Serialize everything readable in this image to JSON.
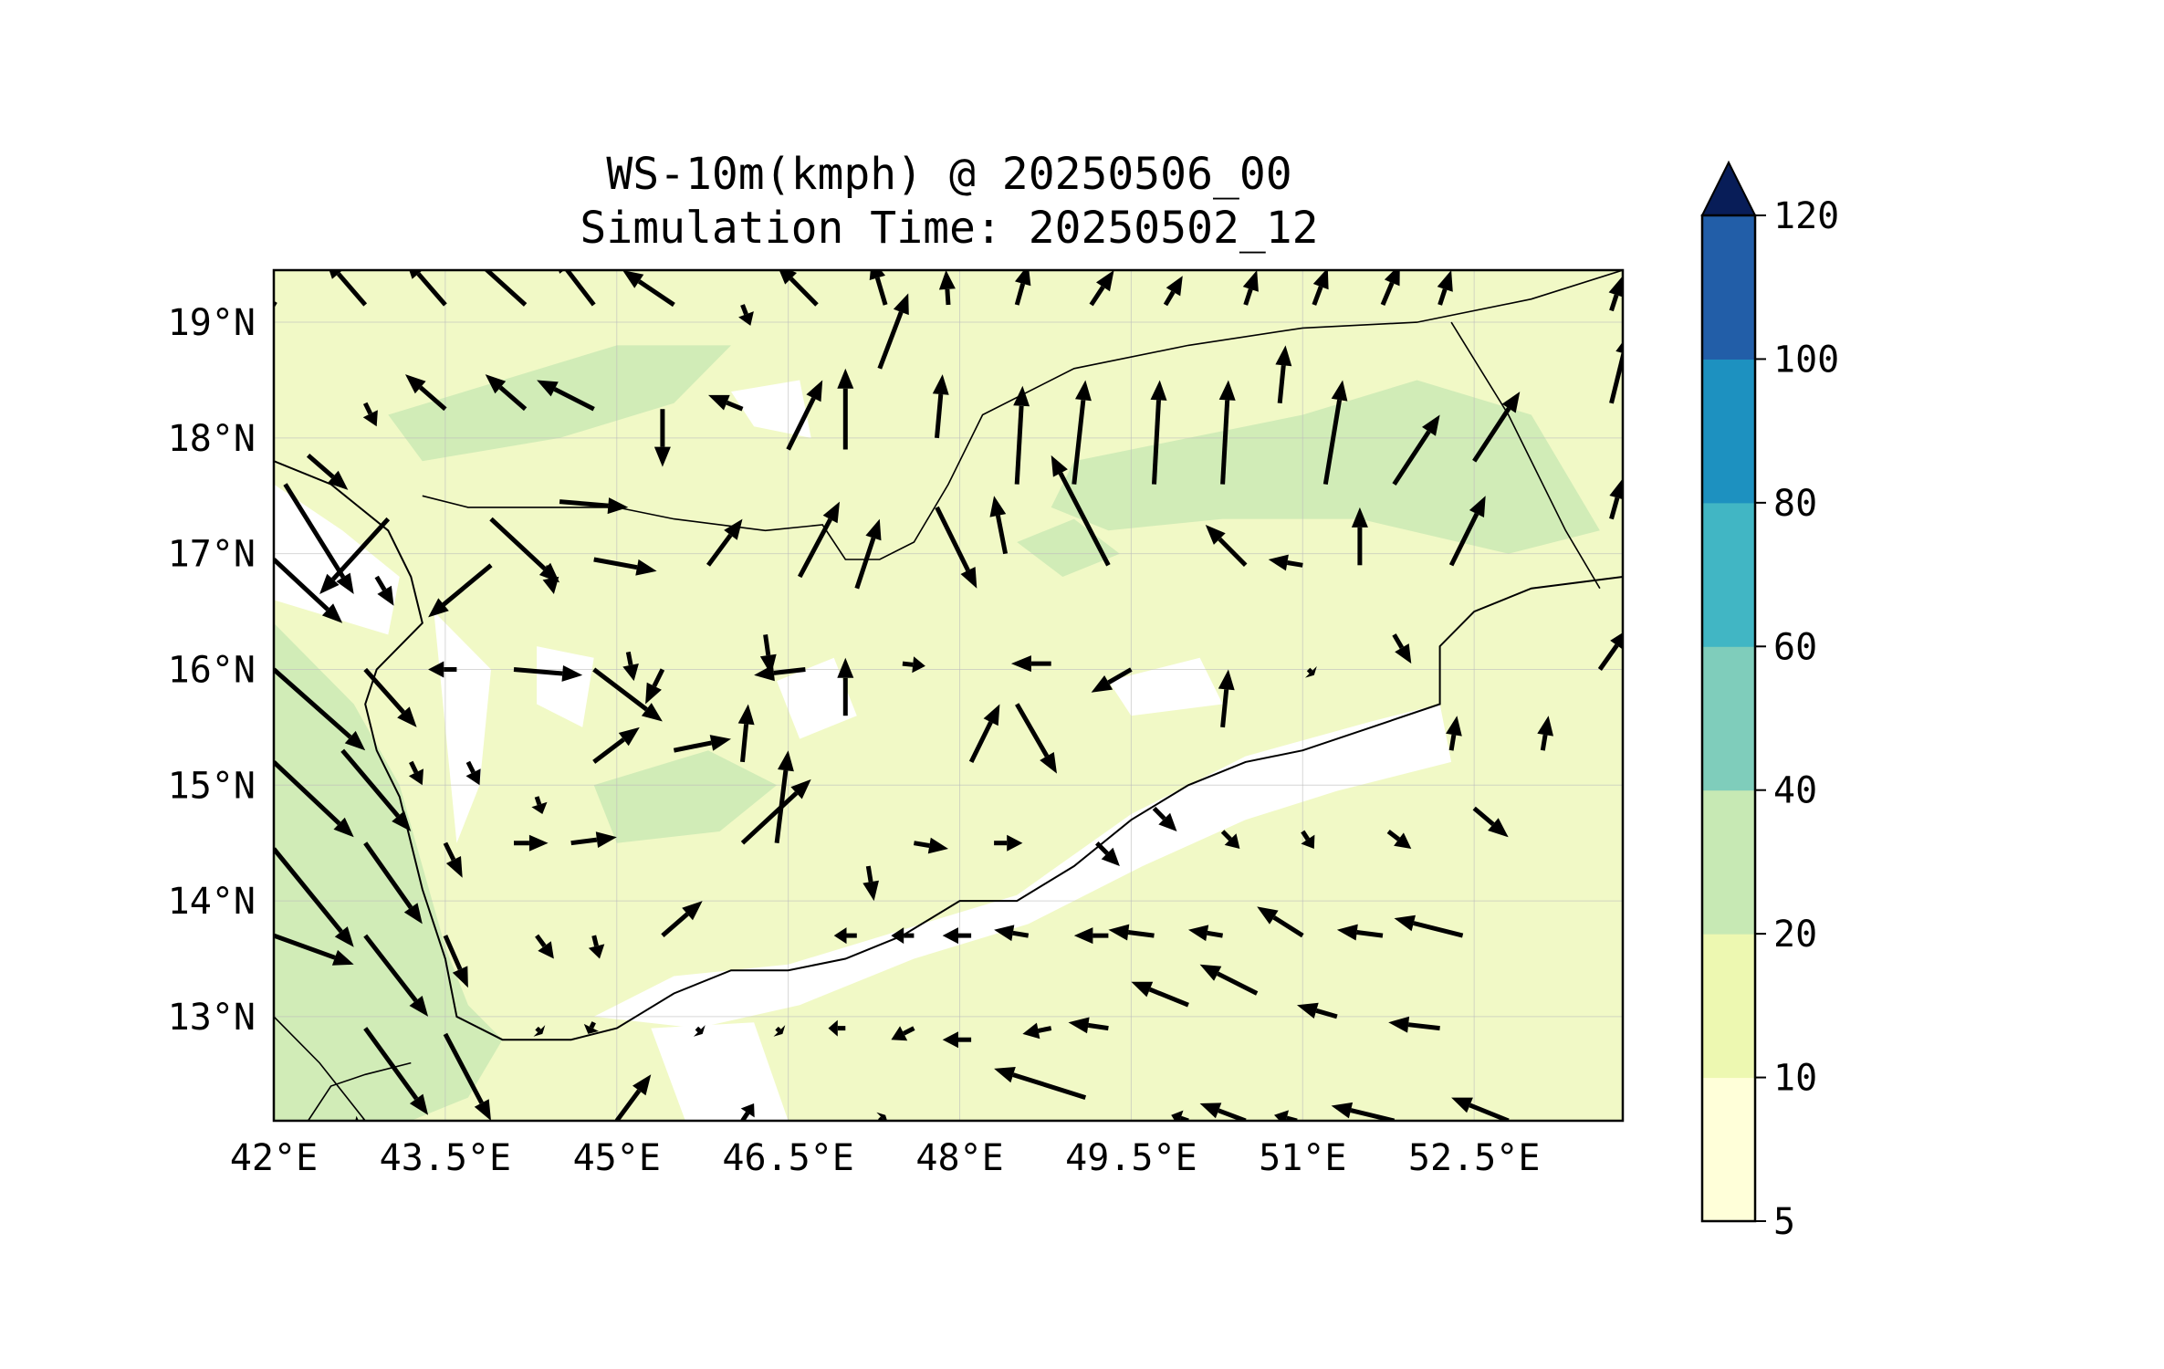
{
  "title": "WS-10m(kmph) @ 20250506_00",
  "subtitle": "Simulation Time: 20250502_12",
  "map": {
    "projection": "PlateCarree",
    "lon_range": [
      42.0,
      53.8
    ],
    "lat_range": [
      12.1,
      19.45
    ],
    "x_ticks": [
      {
        "lon": 42.0,
        "label": "42°E"
      },
      {
        "lon": 43.5,
        "label": "43.5°E"
      },
      {
        "lon": 45.0,
        "label": "45°E"
      },
      {
        "lon": 46.5,
        "label": "46.5°E"
      },
      {
        "lon": 48.0,
        "label": "48°E"
      },
      {
        "lon": 49.5,
        "label": "49.5°E"
      },
      {
        "lon": 51.0,
        "label": "51°E"
      },
      {
        "lon": 52.5,
        "label": "52.5°E"
      }
    ],
    "y_ticks": [
      {
        "lat": 19.0,
        "label": "19°N"
      },
      {
        "lat": 18.0,
        "label": "18°N"
      },
      {
        "lat": 17.0,
        "label": "17°N"
      },
      {
        "lat": 16.0,
        "label": "16°N"
      },
      {
        "lat": 15.0,
        "label": "15°N"
      },
      {
        "lat": 14.0,
        "label": "14°N"
      },
      {
        "lat": 13.0,
        "label": "13°N"
      }
    ],
    "gridlines": true,
    "background_class": "10-20",
    "coastline": [
      [
        42.0,
        17.8
      ],
      [
        42.5,
        17.6
      ],
      [
        43.0,
        17.2
      ],
      [
        43.2,
        16.8
      ],
      [
        43.3,
        16.4
      ],
      [
        42.9,
        16.0
      ],
      [
        42.8,
        15.7
      ],
      [
        42.9,
        15.3
      ],
      [
        43.1,
        14.9
      ],
      [
        43.2,
        14.5
      ],
      [
        43.3,
        14.1
      ],
      [
        43.5,
        13.5
      ],
      [
        43.6,
        13.0
      ],
      [
        44.0,
        12.8
      ],
      [
        44.6,
        12.8
      ],
      [
        45.0,
        12.9
      ],
      [
        45.5,
        13.2
      ],
      [
        46.0,
        13.4
      ],
      [
        46.5,
        13.4
      ],
      [
        47.0,
        13.5
      ],
      [
        47.5,
        13.7
      ],
      [
        48.0,
        14.0
      ],
      [
        48.5,
        14.0
      ],
      [
        49.0,
        14.3
      ],
      [
        49.5,
        14.7
      ],
      [
        50.0,
        15.0
      ],
      [
        50.5,
        15.2
      ],
      [
        51.0,
        15.3
      ],
      [
        51.6,
        15.5
      ],
      [
        52.2,
        15.7
      ],
      [
        52.2,
        16.2
      ],
      [
        52.5,
        16.5
      ],
      [
        53.0,
        16.7
      ],
      [
        53.8,
        16.8
      ]
    ],
    "borders": [
      [
        [
          43.3,
          17.5
        ],
        [
          43.7,
          17.4
        ],
        [
          44.3,
          17.4
        ],
        [
          45.0,
          17.4
        ],
        [
          45.5,
          17.3
        ],
        [
          46.3,
          17.2
        ],
        [
          46.8,
          17.25
        ],
        [
          47.0,
          16.95
        ],
        [
          47.3,
          16.95
        ],
        [
          47.6,
          17.1
        ],
        [
          47.9,
          17.6
        ],
        [
          48.2,
          18.2
        ],
        [
          49.0,
          18.6
        ],
        [
          50.0,
          18.8
        ],
        [
          51.0,
          18.95
        ],
        [
          52.0,
          19.0
        ],
        [
          53.0,
          19.2
        ],
        [
          53.8,
          19.45
        ]
      ],
      [
        [
          52.3,
          19.0
        ],
        [
          52.8,
          18.2
        ],
        [
          53.3,
          17.2
        ],
        [
          53.6,
          16.7
        ]
      ],
      [
        [
          42.0,
          13.0
        ],
        [
          42.4,
          12.6
        ],
        [
          42.8,
          12.1
        ]
      ],
      [
        [
          42.3,
          12.1
        ],
        [
          42.5,
          12.4
        ],
        [
          42.8,
          12.5
        ],
        [
          43.2,
          12.6
        ]
      ]
    ],
    "field_patches": [
      {
        "class": "5-10",
        "poly": [
          [
            42.0,
            17.6
          ],
          [
            42.6,
            17.2
          ],
          [
            43.1,
            16.8
          ],
          [
            43.0,
            16.3
          ],
          [
            42.0,
            16.6
          ]
        ]
      },
      {
        "class": "5-10",
        "poly": [
          [
            43.4,
            16.5
          ],
          [
            43.9,
            16.0
          ],
          [
            43.8,
            15.0
          ],
          [
            43.6,
            14.5
          ],
          [
            43.5,
            15.5
          ]
        ]
      },
      {
        "class": "5-10",
        "poly": [
          [
            44.8,
            13.0
          ],
          [
            45.5,
            13.35
          ],
          [
            46.5,
            13.45
          ],
          [
            47.5,
            13.75
          ],
          [
            48.5,
            14.05
          ],
          [
            49.5,
            14.75
          ],
          [
            50.5,
            15.25
          ],
          [
            51.6,
            15.55
          ],
          [
            52.2,
            15.7
          ],
          [
            52.3,
            15.2
          ],
          [
            51.3,
            14.95
          ],
          [
            50.5,
            14.7
          ],
          [
            49.6,
            14.3
          ],
          [
            48.6,
            13.8
          ],
          [
            47.6,
            13.5
          ],
          [
            46.6,
            13.1
          ],
          [
            45.7,
            12.9
          ]
        ]
      },
      {
        "class": "5-10",
        "poly": [
          [
            45.3,
            12.9
          ],
          [
            46.2,
            12.95
          ],
          [
            46.5,
            12.1
          ],
          [
            45.6,
            12.1
          ]
        ]
      },
      {
        "class": "5-10",
        "poly": [
          [
            46.4,
            15.9
          ],
          [
            46.9,
            16.1
          ],
          [
            47.1,
            15.6
          ],
          [
            46.6,
            15.4
          ]
        ]
      },
      {
        "class": "5-10",
        "poly": [
          [
            49.3,
            15.9
          ],
          [
            50.1,
            16.1
          ],
          [
            50.3,
            15.7
          ],
          [
            49.5,
            15.6
          ]
        ]
      },
      {
        "class": "5-10",
        "poly": [
          [
            46.0,
            18.4
          ],
          [
            46.6,
            18.5
          ],
          [
            46.7,
            18.0
          ],
          [
            46.2,
            18.1
          ]
        ]
      },
      {
        "class": "5-10",
        "poly": [
          [
            44.3,
            16.2
          ],
          [
            44.8,
            16.1
          ],
          [
            44.7,
            15.5
          ],
          [
            44.3,
            15.7
          ]
        ]
      },
      {
        "class": "20-40",
        "poly": [
          [
            42.0,
            16.4
          ],
          [
            42.7,
            15.7
          ],
          [
            43.1,
            15.0
          ],
          [
            43.3,
            14.3
          ],
          [
            43.5,
            13.6
          ],
          [
            43.7,
            13.1
          ],
          [
            44.0,
            12.8
          ],
          [
            43.7,
            12.3
          ],
          [
            43.2,
            12.1
          ],
          [
            42.0,
            12.1
          ]
        ]
      },
      {
        "class": "20-40",
        "poly": [
          [
            49.0,
            17.8
          ],
          [
            50.0,
            18.0
          ],
          [
            51.0,
            18.2
          ],
          [
            52.0,
            18.5
          ],
          [
            53.0,
            18.2
          ],
          [
            53.6,
            17.2
          ],
          [
            52.8,
            17.0
          ],
          [
            51.5,
            17.3
          ],
          [
            50.3,
            17.3
          ],
          [
            49.3,
            17.2
          ],
          [
            48.8,
            17.4
          ]
        ]
      },
      {
        "class": "20-40",
        "poly": [
          [
            43.0,
            18.2
          ],
          [
            44.0,
            18.5
          ],
          [
            45.0,
            18.8
          ],
          [
            46.0,
            18.8
          ],
          [
            45.5,
            18.3
          ],
          [
            44.5,
            18.0
          ],
          [
            43.3,
            17.8
          ]
        ]
      },
      {
        "class": "20-40",
        "poly": [
          [
            44.8,
            15.0
          ],
          [
            45.8,
            15.3
          ],
          [
            46.4,
            15.0
          ],
          [
            45.9,
            14.6
          ],
          [
            45.0,
            14.5
          ]
        ]
      },
      {
        "class": "20-40",
        "poly": [
          [
            48.5,
            17.1
          ],
          [
            49.0,
            17.3
          ],
          [
            49.4,
            17.0
          ],
          [
            48.9,
            16.8
          ]
        ]
      }
    ]
  },
  "wind_vectors": [
    [
      42.02,
      19.15,
      -0.2,
      0.12
    ],
    [
      42.8,
      19.15,
      -0.35,
      0.4
    ],
    [
      43.5,
      19.15,
      -0.35,
      0.4
    ],
    [
      44.2,
      19.15,
      -0.95,
      0.85
    ],
    [
      44.8,
      19.15,
      -0.35,
      0.45
    ],
    [
      45.5,
      19.15,
      -0.45,
      0.3
    ],
    [
      46.1,
      19.15,
      0.07,
      -0.18
    ],
    [
      46.75,
      19.15,
      -0.35,
      0.35
    ],
    [
      47.35,
      19.15,
      -0.12,
      0.4
    ],
    [
      47.9,
      19.15,
      -0.02,
      0.3
    ],
    [
      48.5,
      19.15,
      0.1,
      0.35
    ],
    [
      49.15,
      19.15,
      0.2,
      0.3
    ],
    [
      49.8,
      19.15,
      0.15,
      0.25
    ],
    [
      50.5,
      19.15,
      0.1,
      0.3
    ],
    [
      51.1,
      19.15,
      0.12,
      0.32
    ],
    [
      51.7,
      19.15,
      0.15,
      0.35
    ],
    [
      52.2,
      19.15,
      0.1,
      0.3
    ],
    [
      42.8,
      18.3,
      0.1,
      -0.2
    ],
    [
      43.5,
      18.25,
      -0.35,
      0.3
    ],
    [
      44.2,
      18.25,
      -0.35,
      0.3
    ],
    [
      44.8,
      18.25,
      -0.5,
      0.25
    ],
    [
      45.4,
      18.25,
      0.0,
      -0.5
    ],
    [
      46.1,
      18.25,
      -0.3,
      0.12
    ],
    [
      46.5,
      17.9,
      0.3,
      0.6
    ],
    [
      47.0,
      17.9,
      0.0,
      0.7
    ],
    [
      47.3,
      18.6,
      0.25,
      0.65
    ],
    [
      47.8,
      18.0,
      0.05,
      0.55
    ],
    [
      48.5,
      17.6,
      0.05,
      0.85
    ],
    [
      49.0,
      17.6,
      0.1,
      0.9
    ],
    [
      49.7,
      17.6,
      0.05,
      0.9
    ],
    [
      50.3,
      17.6,
      0.05,
      0.9
    ],
    [
      50.8,
      18.3,
      0.05,
      0.5
    ],
    [
      51.2,
      17.6,
      0.15,
      0.9
    ],
    [
      51.8,
      17.6,
      0.4,
      0.6
    ],
    [
      52.5,
      17.8,
      0.4,
      0.6
    ],
    [
      42.3,
      17.85,
      0.35,
      -0.3
    ],
    [
      43.0,
      17.3,
      -0.6,
      -0.65
    ],
    [
      43.9,
      17.3,
      0.6,
      -0.55
    ],
    [
      44.5,
      17.45,
      0.6,
      -0.05
    ],
    [
      45.8,
      16.9,
      0.3,
      0.4
    ],
    [
      46.6,
      16.8,
      0.35,
      0.65
    ],
    [
      47.1,
      16.7,
      0.2,
      0.6
    ],
    [
      47.8,
      17.4,
      0.35,
      -0.7
    ],
    [
      48.4,
      17.0,
      -0.1,
      0.5
    ],
    [
      49.3,
      16.9,
      -0.5,
      0.95
    ],
    [
      50.5,
      16.9,
      -0.35,
      0.35
    ],
    [
      51.0,
      16.9,
      -0.3,
      0.05
    ],
    [
      51.5,
      16.9,
      0.0,
      0.5
    ],
    [
      52.3,
      16.9,
      0.3,
      0.6
    ],
    [
      42.1,
      17.6,
      0.6,
      -0.95
    ],
    [
      42.9,
      16.8,
      0.15,
      -0.25
    ],
    [
      43.9,
      16.9,
      -0.55,
      -0.45
    ],
    [
      44.4,
      16.9,
      0.05,
      -0.25
    ],
    [
      44.8,
      16.95,
      0.55,
      -0.1
    ],
    [
      45.1,
      16.15,
      0.05,
      -0.25
    ],
    [
      42.0,
      16.95,
      0.6,
      -0.55
    ],
    [
      42.0,
      16.0,
      0.8,
      -0.7
    ],
    [
      42.8,
      16.0,
      0.45,
      -0.5
    ],
    [
      43.6,
      16.0,
      -0.25,
      0.0
    ],
    [
      44.1,
      16.0,
      0.6,
      -0.05
    ],
    [
      44.8,
      16.0,
      0.6,
      -0.45
    ],
    [
      45.4,
      16.0,
      -0.15,
      -0.3
    ],
    [
      46.3,
      16.3,
      0.05,
      -0.35
    ],
    [
      46.65,
      16.0,
      -0.45,
      -0.05
    ],
    [
      47.0,
      15.6,
      0.0,
      0.5
    ],
    [
      47.5,
      16.05,
      0.2,
      -0.02
    ],
    [
      48.1,
      15.2,
      0.25,
      0.5
    ],
    [
      48.5,
      15.7,
      0.35,
      -0.6
    ],
    [
      48.8,
      16.05,
      -0.35,
      0.0
    ],
    [
      49.5,
      16.0,
      -0.35,
      -0.2
    ],
    [
      50.3,
      15.5,
      0.05,
      0.5
    ],
    [
      51.05,
      16.0,
      0.05,
      -0.05
    ],
    [
      51.8,
      16.3,
      0.15,
      -0.25
    ],
    [
      52.3,
      15.3,
      0.05,
      0.3
    ],
    [
      53.1,
      15.3,
      0.05,
      0.3
    ],
    [
      53.6,
      16.0,
      0.25,
      0.35
    ],
    [
      42.0,
      15.2,
      0.7,
      -0.65
    ],
    [
      42.6,
      15.3,
      0.6,
      -0.7
    ],
    [
      43.2,
      15.2,
      0.1,
      -0.2
    ],
    [
      43.7,
      15.2,
      0.1,
      -0.2
    ],
    [
      44.3,
      14.9,
      0.05,
      -0.15
    ],
    [
      44.8,
      15.2,
      0.4,
      0.3
    ],
    [
      45.5,
      15.3,
      0.5,
      0.1
    ],
    [
      46.1,
      15.2,
      0.05,
      0.5
    ],
    [
      46.1,
      14.5,
      0.6,
      0.55
    ],
    [
      46.4,
      14.5,
      0.1,
      0.8
    ],
    [
      47.2,
      14.3,
      0.05,
      -0.3
    ],
    [
      47.6,
      14.5,
      0.3,
      -0.05
    ],
    [
      48.3,
      14.5,
      0.25,
      0.0
    ],
    [
      49.2,
      14.5,
      0.2,
      -0.2
    ],
    [
      49.7,
      14.8,
      0.2,
      -0.2
    ],
    [
      50.3,
      14.6,
      0.15,
      -0.15
    ],
    [
      51.0,
      14.6,
      0.1,
      -0.15
    ],
    [
      51.75,
      14.6,
      0.2,
      -0.15
    ],
    [
      52.5,
      14.8,
      0.3,
      -0.25
    ],
    [
      42.0,
      14.45,
      0.7,
      -0.85
    ],
    [
      42.8,
      14.5,
      0.5,
      -0.7
    ],
    [
      43.5,
      14.5,
      0.15,
      -0.3
    ],
    [
      44.1,
      14.5,
      0.3,
      0.0
    ],
    [
      44.6,
      14.5,
      0.4,
      0.05
    ],
    [
      45.4,
      13.7,
      0.35,
      0.3
    ],
    [
      44.3,
      13.7,
      0.15,
      -0.2
    ],
    [
      44.8,
      13.7,
      0.05,
      -0.2
    ],
    [
      47.1,
      13.7,
      -0.2,
      0.0
    ],
    [
      47.6,
      13.7,
      -0.2,
      0.0
    ],
    [
      48.1,
      13.7,
      -0.25,
      0.0
    ],
    [
      48.6,
      13.7,
      -0.3,
      0.05
    ],
    [
      49.3,
      13.7,
      -0.3,
      0.0
    ],
    [
      49.7,
      13.7,
      -0.4,
      0.05
    ],
    [
      50.3,
      13.7,
      -0.3,
      0.05
    ],
    [
      51.0,
      13.7,
      -0.4,
      0.25
    ],
    [
      51.7,
      13.7,
      -0.4,
      0.05
    ],
    [
      52.4,
      13.7,
      -0.6,
      0.15
    ],
    [
      42.0,
      13.7,
      0.7,
      -0.25
    ],
    [
      42.8,
      13.7,
      0.55,
      -0.7
    ],
    [
      43.5,
      13.7,
      0.2,
      -0.45
    ],
    [
      44.3,
      12.9,
      0.05,
      -0.05
    ],
    [
      44.8,
      12.95,
      -0.05,
      -0.1
    ],
    [
      45.7,
      12.9,
      0.05,
      -0.05
    ],
    [
      46.4,
      12.9,
      0.05,
      -0.05
    ],
    [
      47.0,
      12.9,
      -0.15,
      0.0
    ],
    [
      47.6,
      12.9,
      -0.2,
      -0.1
    ],
    [
      48.1,
      12.8,
      -0.25,
      0.0
    ],
    [
      48.8,
      12.9,
      -0.25,
      -0.05
    ],
    [
      49.3,
      12.9,
      -0.35,
      0.05
    ],
    [
      50.0,
      13.1,
      -0.5,
      0.2
    ],
    [
      50.6,
      13.2,
      -0.5,
      0.25
    ],
    [
      51.3,
      13.0,
      -0.35,
      0.1
    ],
    [
      52.2,
      12.9,
      -0.45,
      0.05
    ],
    [
      42.8,
      12.9,
      0.55,
      -0.75
    ],
    [
      42.8,
      12.1,
      -0.1,
      -0.05
    ],
    [
      43.5,
      12.85,
      0.4,
      -0.75
    ],
    [
      45.0,
      12.1,
      0.3,
      0.4
    ],
    [
      46.1,
      12.1,
      0.1,
      0.15
    ],
    [
      47.3,
      12.1,
      0.05,
      0.05
    ],
    [
      49.1,
      12.3,
      -0.8,
      0.25
    ],
    [
      50.0,
      12.1,
      -0.15,
      0.05
    ],
    [
      50.5,
      12.1,
      -0.4,
      0.15
    ],
    [
      50.95,
      12.1,
      -0.2,
      0.05
    ],
    [
      51.8,
      12.1,
      -0.55,
      0.13
    ],
    [
      52.8,
      12.1,
      -0.5,
      0.2
    ],
    [
      53.7,
      19.1,
      0.1,
      0.3
    ],
    [
      53.7,
      18.3,
      0.15,
      0.6
    ],
    [
      53.7,
      17.3,
      0.1,
      0.35
    ]
  ],
  "colorbar": {
    "boundaries": [
      5,
      10,
      20,
      40,
      60,
      80,
      100,
      120
    ],
    "labels": [
      "5",
      "10",
      "20",
      "40",
      "60",
      "80",
      "100",
      "120"
    ],
    "colors": [
      "#ffffd9",
      "#edf8b1",
      "#c7e9b4",
      "#7fcdbb",
      "#41b6c4",
      "#1d91c0",
      "#225ea8",
      "#253494"
    ],
    "extend_color": "#081d58",
    "extend": "max"
  },
  "field_colors": {
    "5-10": "#ffffff",
    "10-20": "#f1f9c6",
    "20-40": "#d1ecb7"
  }
}
